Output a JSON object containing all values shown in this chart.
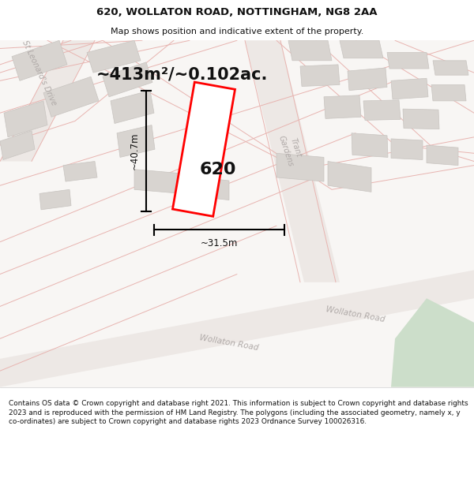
{
  "title": "620, WOLLATON ROAD, NOTTINGHAM, NG8 2AA",
  "subtitle": "Map shows position and indicative extent of the property.",
  "area_label": "~413m²/~0.102ac.",
  "plot_number": "620",
  "width_label": "~31.5m",
  "height_label": "~40.7m",
  "footer": "Contains OS data © Crown copyright and database right 2021. This information is subject to Crown copyright and database rights 2023 and is reproduced with the permission of HM Land Registry. The polygons (including the associated geometry, namely x, y co-ordinates) are subject to Crown copyright and database rights 2023 Ordnance Survey 100026316.",
  "map_bg": "#f7f5f3",
  "road_line_color": "#e8b4b0",
  "road_fill_color": "#ede8e5",
  "building_fill": "#d8d4d0",
  "building_edge": "#c8c4c0",
  "plot_color": "#ff0000",
  "plot_fill": "#ffffff",
  "green_color": "#ccdeca",
  "road_label_color": "#b0aaa8",
  "dim_color": "#111111",
  "title_color": "#111111",
  "footer_bg": "#ffffff"
}
